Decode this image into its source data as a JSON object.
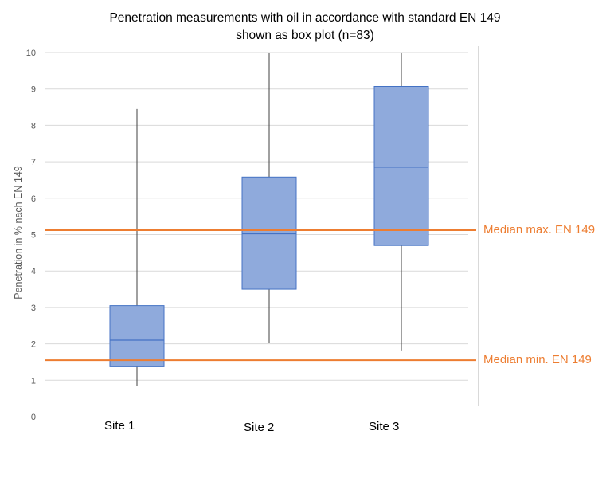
{
  "chart_data": {
    "type": "boxplot",
    "title_lines": [
      "Penetration measurements with oil in accordance with standard EN 149",
      "shown as box plot (n=83)"
    ],
    "xlabel": "",
    "ylabel": "Penetration in % nach EN 149",
    "ylim": [
      0,
      10
    ],
    "yticks": [
      "0",
      "1",
      "2",
      "3",
      "4",
      "5",
      "6",
      "7",
      "8",
      "9",
      "10"
    ],
    "grid": true,
    "categories": [
      "Site 1",
      "Site 2",
      "Site 3"
    ],
    "boxes": [
      {
        "category": "Site 1",
        "whisker_low": 0.85,
        "q1": 1.37,
        "median": 2.1,
        "q3": 3.05,
        "whisker_high": 8.45
      },
      {
        "category": "Site 2",
        "whisker_low": 2.02,
        "q1": 3.5,
        "median": 5.02,
        "q3": 6.58,
        "whisker_high": 10
      },
      {
        "category": "Site 3",
        "whisker_low": 1.82,
        "q1": 4.7,
        "median": 6.85,
        "q3": 9.07,
        "whisker_high": 10
      }
    ],
    "reference_lines": [
      {
        "label": "Median max. EN 149",
        "value": 5.12
      },
      {
        "label": "Median min. EN 149",
        "value": 1.55
      }
    ],
    "colors": {
      "box_fill": "#8FAADC",
      "box_stroke": "#4472C4",
      "whisker": "#404040",
      "reference": "#ED7D31",
      "grid": "#d9d9d9"
    }
  }
}
